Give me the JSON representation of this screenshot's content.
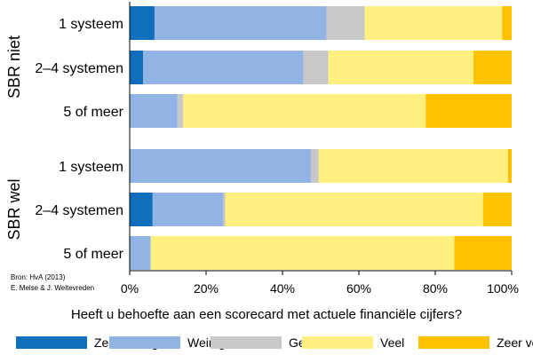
{
  "chart_data": {
    "type": "bar",
    "orientation": "horizontal-stacked-percent",
    "groups": [
      {
        "label": "SBR niet",
        "categories": [
          "1 systeem",
          "2–4 systemen",
          "5 of meer"
        ]
      },
      {
        "label": "SBR wel",
        "categories": [
          "1 systeem",
          "2–4 systemen",
          "5 of meer"
        ]
      }
    ],
    "categories": [
      "1 systeem",
      "2–4 systemen",
      "5 of meer",
      "1 systeem",
      "2–4 systemen",
      "5 of meer"
    ],
    "series": [
      {
        "name": "Zeer weinig",
        "color": "#0f6fbd",
        "values": [
          6.5,
          3.5,
          0,
          0,
          6,
          0
        ]
      },
      {
        "name": "Weinig",
        "color": "#92b4e4",
        "values": [
          45,
          42,
          12.5,
          47.5,
          18.5,
          5.5
        ]
      },
      {
        "name": "Geen",
        "color": "#c8c8c8",
        "values": [
          10,
          6.5,
          1.5,
          2,
          0.5,
          0
        ]
      },
      {
        "name": "Veel",
        "color": "#fff07f",
        "values": [
          36,
          38,
          63.5,
          49.5,
          67.5,
          79.5
        ]
      },
      {
        "name": "Zeer veel",
        "color": "#ffc000",
        "values": [
          2.5,
          10,
          22.5,
          1,
          7.5,
          15
        ]
      }
    ],
    "xlim": [
      0,
      100
    ],
    "xticks": [
      "0%",
      "20%",
      "40%",
      "60%",
      "80%",
      "100%"
    ],
    "xlabel": "Heeft u behoefte aan een scorecard met actuele financiële cijfers?",
    "legend_position": "bottom",
    "grid": false
  },
  "source": {
    "line1": "Bron: HvA (2013)",
    "line2": "E. Melse & J. Weltevreden"
  }
}
